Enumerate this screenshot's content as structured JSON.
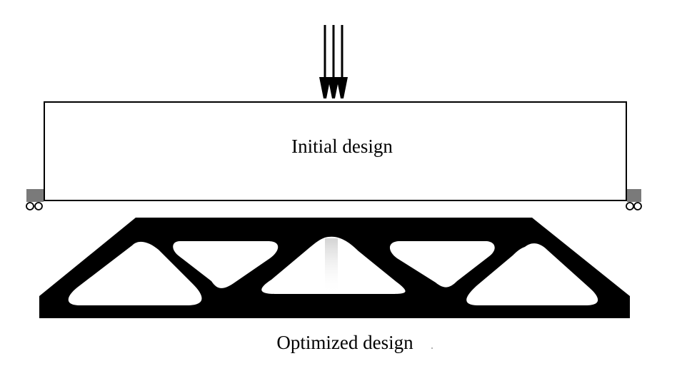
{
  "labels": {
    "initial": "Initial design",
    "optimized": "Optimized design"
  },
  "colors": {
    "stroke": "#000000",
    "material": "#000000",
    "support": "#7a7a7a",
    "background": "#ffffff"
  }
}
